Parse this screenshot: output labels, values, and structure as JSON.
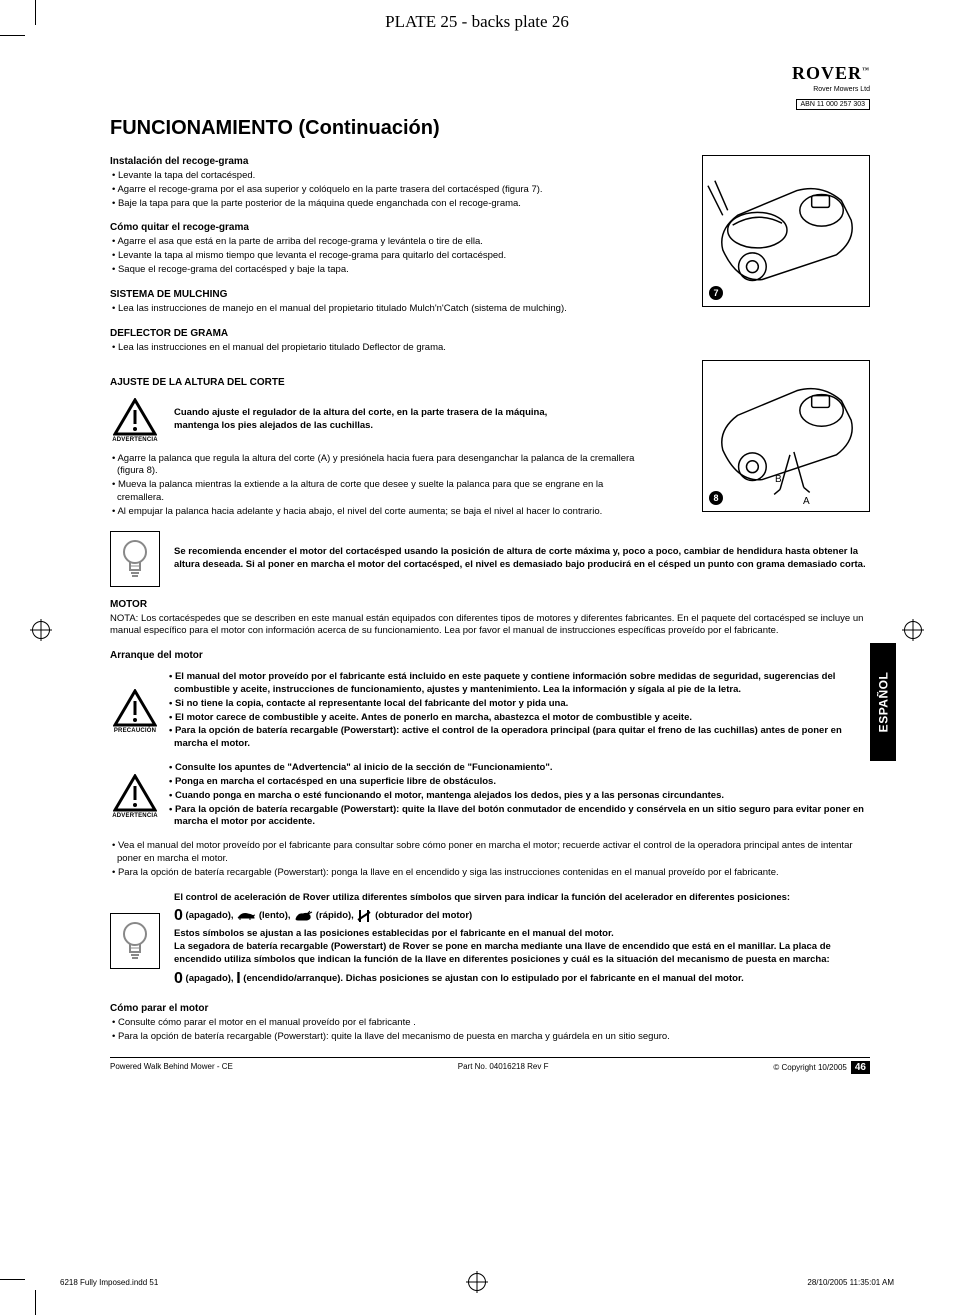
{
  "plate_header": "PLATE 25 - backs plate 26",
  "logo": {
    "brand": "ROVER",
    "tm": "™",
    "company": "Rover Mowers Ltd",
    "abn": "ABN 11 000 257 303"
  },
  "title": "FUNCIONAMIENTO (Continuación)",
  "sec_install": {
    "heading": "Instalación del recoge-grama",
    "items": [
      "Levante la tapa del cortacésped.",
      "Agarre el recoge-grama por el asa superior y colóquelo en la parte trasera del cortacésped (figura 7).",
      "Baje la tapa para que la parte posterior de la máquina quede enganchada con el recoge-grama."
    ]
  },
  "sec_remove": {
    "heading": "Cómo quitar el recoge-grama",
    "items": [
      "Agarre el asa que está en la parte de arriba del recoge-grama y levántela o tire de ella.",
      "Levante la tapa al mismo tiempo que levanta el recoge-grama para quitarlo del cortacésped.",
      "Saque el recoge-grama del cortacésped y baje la tapa."
    ]
  },
  "sec_mulch": {
    "heading": "SISTEMA DE MULCHING",
    "items": [
      "Lea las instrucciones de manejo en el manual del propietario titulado Mulch'n'Catch (sistema de mulching)."
    ]
  },
  "sec_deflector": {
    "heading": "DEFLECTOR DE GRAMA",
    "items": [
      "Lea las instrucciones en el manual del propietario titulado Deflector de grama."
    ]
  },
  "sec_height": {
    "heading": "AJUSTE DE LA ALTURA DEL CORTE",
    "warn_label": "ADVERTENCIA",
    "warn_text": "Cuando ajuste el regulador de la altura del corte, en la parte trasera de la máquina, mantenga los pies alejados de las cuchillas.",
    "items": [
      "Agarre la palanca que regula la altura del corte (A) y presiónela hacia fuera para desenganchar la palanca de la cremallera (figura 8).",
      "Mueva la palanca mientras la extiende a la altura de corte que desee y suelte la palanca para que se engrane en la cremallera.",
      "Al empujar la palanca hacia adelante y hacia abajo, el nivel del corte aumenta; se baja el nivel al hacer lo contrario."
    ],
    "tip": "Se recomienda encender el motor del cortacésped usando la posición de altura de corte máxima y, poco a poco, cambiar de hendidura hasta obtener la altura deseada. Si al poner en marcha el motor del cortacésped, el nivel es demasiado bajo producirá en el césped un punto con grama demasiado corta."
  },
  "sec_motor": {
    "heading": "MOTOR",
    "note": "NOTA: Los cortacéspedes que se describen en este manual están equipados con diferentes tipos de motores y diferentes fabricantes. En el paquete del cortacésped se incluye un manual específico para el motor con información acerca de su funcionamiento. Lea por favor el manual de instrucciones específicas proveído por el fabricante."
  },
  "sec_start": {
    "heading": "Arranque del motor",
    "caution_label": "PRECAUCIÓN",
    "caution_items": [
      "El manual del motor proveído por el fabricante está incluido en este paquete y contiene información sobre medidas de seguridad, sugerencias del combustible y aceite, instrucciones de funcionamiento, ajustes y mantenimiento. Lea la información y sígala al pie de la letra.",
      "Si no tiene la copia, contacte al representante local del fabricante del motor y pida una.",
      "El motor carece de combustible y aceite. Antes de ponerlo en marcha, abastezca el motor de combustible y aceite.",
      "Para la opción de batería recargable (Powerstart): active el control de la operadora principal (para quitar el freno de las cuchillas) antes de poner en marcha el motor."
    ],
    "warn_label": "ADVERTENCIA",
    "warn_items": [
      "Consulte los apuntes de \"Advertencia\" al inicio de la sección de \"Funcionamiento\".",
      "Ponga en marcha el cortacésped en una superficie libre de obstáculos.",
      "Cuando ponga en marcha o esté funcionando el motor, mantenga alejados los dedos, pies y a las personas circundantes.",
      "Para la opción de batería recargable (Powerstart): quite la llave del botón conmutador de encendido y consérvela en un sitio seguro para evitar poner en marcha el motor por accidente."
    ],
    "post_items": [
      "Vea el manual del motor proveído por el fabricante para consultar sobre cómo poner en marcha el motor; recuerde activar el control de la operadora principal antes de intentar poner en marcha el motor.",
      "Para la opción de batería recargable (Powerstart): ponga la llave en el encendido y siga las instrucciones contenidas en el manual proveído por el fabricante."
    ]
  },
  "throttle": {
    "intro": "El control de aceleración de Rover utiliza diferentes símbolos que sirven para indicar la función del acelerador en diferentes posiciones:",
    "off_sym": "0",
    "off_label": " (apagado), ",
    "slow_label": " (lento), ",
    "fast_label": " (rápido), ",
    "choke_label": " (obturador del motor)",
    "line2": "Estos símbolos se ajustan a las posiciones establecidas por el fabricante en el manual del motor.",
    "line3": "La segadora de batería recargable (Powerstart) de Rover se pone en marcha mediante una llave de encendido que está en el manillar. La placa de encendido utiliza símbolos que indican la función de la llave en diferentes posiciones y cuál es la situación del mecanismo de puesta en marcha:",
    "off2_sym": "0",
    "off2_label": " (apagado), ",
    "on_sym": "I",
    "on_label": " (encendido/arranque). Dichas posiciones se ajustan con lo estipulado por el fabricante en el manual del motor."
  },
  "sec_stop": {
    "heading": "Cómo parar el motor",
    "items": [
      "Consulte cómo parar el motor en el manual proveído por el fabricante .",
      "Para la opción de batería recargable (Powerstart): quite la llave del mecanismo de puesta en marcha y guárdela en un sitio seguro."
    ]
  },
  "figures": {
    "fig7_num": "7",
    "fig8_num": "8",
    "fig8_a": "A",
    "fig8_b": "B"
  },
  "side_tab": "ESPAÑOL",
  "footer": {
    "left": "Powered Walk Behind Mower - CE",
    "center": "Part No. 04016218 Rev F",
    "right": "© Copyright 10/2005",
    "page": "46"
  },
  "imprint": {
    "left": "6218 Fully Imposed.indd   51",
    "right": "28/10/2005   11:35:01 AM"
  }
}
